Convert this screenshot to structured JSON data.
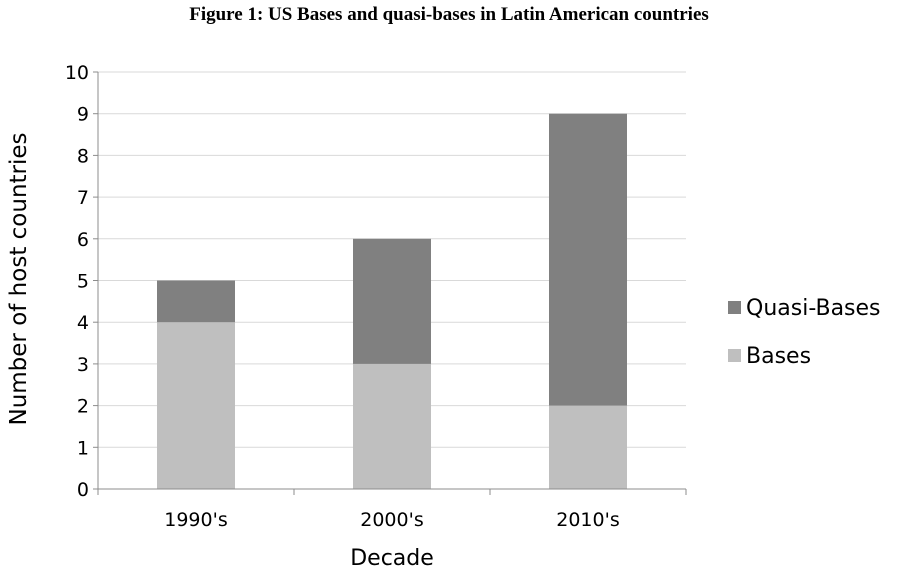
{
  "chart_data": {
    "type": "bar",
    "stacked": true,
    "title": "Figure 1:  US Bases and quasi-bases in Latin American countries",
    "xlabel": "Decade",
    "ylabel": "Number of host countries",
    "categories": [
      "1990's",
      "2000's",
      "2010's"
    ],
    "series": [
      {
        "name": "Bases",
        "values": [
          4,
          3,
          2
        ],
        "color": "#bfbfbf"
      },
      {
        "name": "Quasi-Bases",
        "values": [
          1,
          3,
          7
        ],
        "color": "#808080"
      }
    ],
    "ylim": [
      0,
      10
    ],
    "yticks": [
      "0",
      "1",
      "2",
      "3",
      "4",
      "5",
      "6",
      "7",
      "8",
      "9",
      "10"
    ],
    "grid": true,
    "legend": "right"
  }
}
